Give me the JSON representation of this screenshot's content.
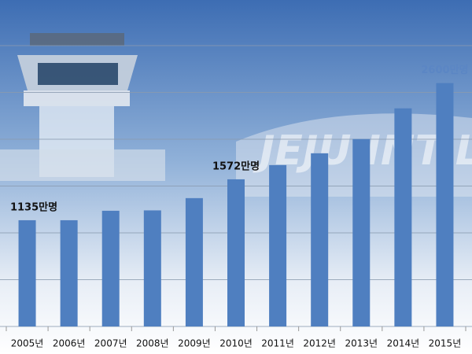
{
  "background_text": "JEJU INT'L",
  "chart_data": {
    "type": "bar",
    "categories": [
      "2005년",
      "2006년",
      "2007년",
      "2008년",
      "2009년",
      "2010년",
      "2011년",
      "2012년",
      "2013년",
      "2014년",
      "2015년"
    ],
    "values": [
      1135,
      1135,
      1236,
      1240,
      1371,
      1572,
      1724,
      1850,
      2002,
      2330,
      2600
    ],
    "value_labels": [
      "1135만명",
      null,
      null,
      null,
      null,
      "1572만명",
      null,
      null,
      null,
      null,
      "2600만명"
    ],
    "value_label_colors": [
      "#111111",
      null,
      null,
      null,
      null,
      "#111111",
      null,
      null,
      null,
      null,
      "#5b86c4"
    ],
    "color": "#4f7fc0",
    "ylim": [
      0,
      3000
    ],
    "yticks": [
      0,
      500,
      1000,
      1500,
      2000,
      2500,
      3000
    ],
    "grid": true
  }
}
